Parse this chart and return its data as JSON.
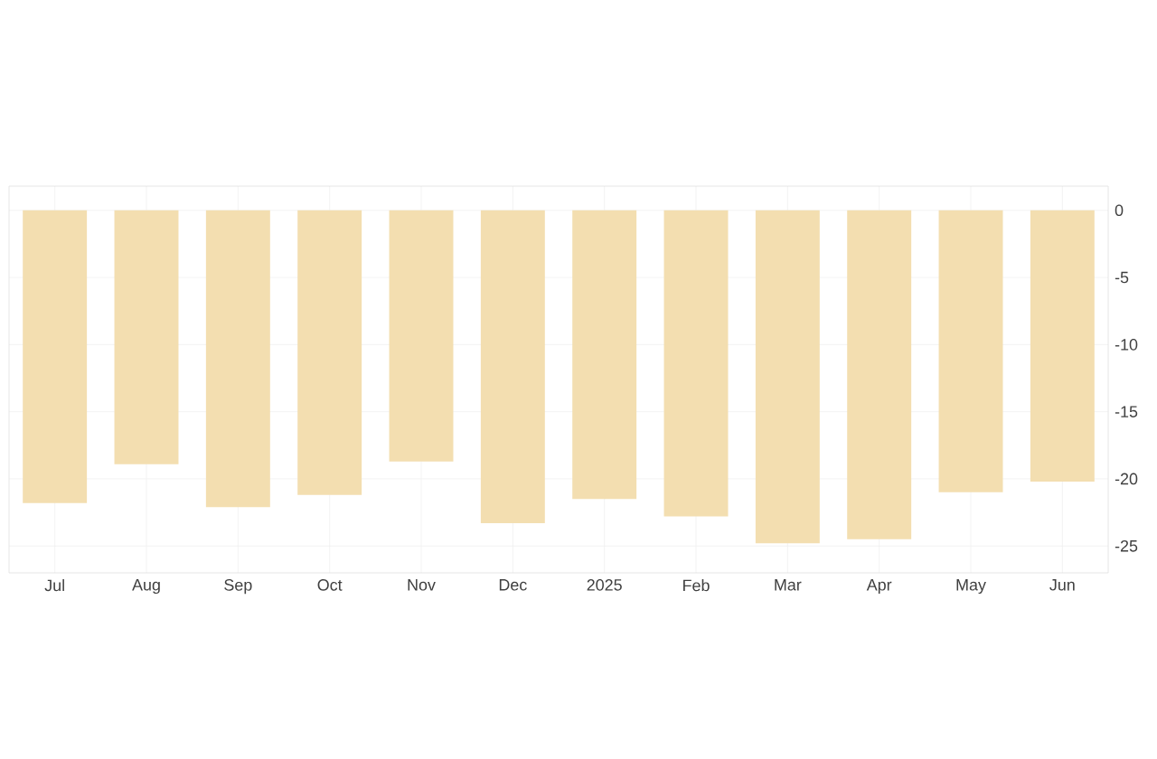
{
  "chart_data": {
    "type": "bar",
    "categories": [
      "Jul",
      "Aug",
      "Sep",
      "Oct",
      "Nov",
      "Dec",
      "2025",
      "Feb",
      "Mar",
      "Apr",
      "May",
      "Jun"
    ],
    "values": [
      -21.8,
      -18.9,
      -22.1,
      -21.2,
      -18.7,
      -23.3,
      -21.5,
      -22.8,
      -24.8,
      -24.5,
      -21.0,
      -20.2
    ],
    "color": "#f3deb0",
    "ylim": [
      -27,
      1.8
    ],
    "yticks": [
      -25,
      -20,
      -15,
      -10,
      -5,
      0
    ],
    "grid": true
  }
}
